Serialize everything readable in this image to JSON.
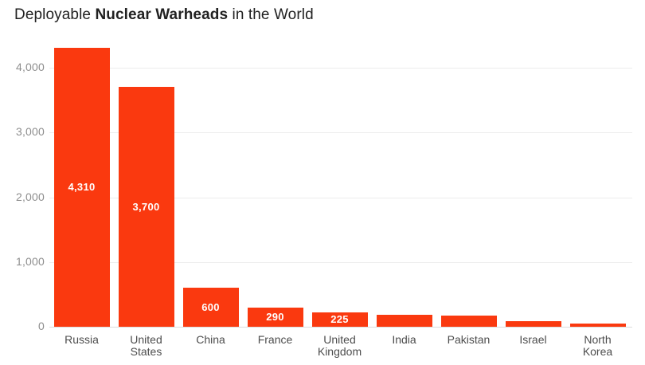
{
  "title": {
    "prefix": "Deployable ",
    "emphasis": "Nuclear Warheads",
    "suffix": " in the World"
  },
  "chart_data": {
    "type": "bar",
    "title": "Deployable Nuclear Warheads in the World",
    "categories": [
      "Russia",
      "United States",
      "China",
      "France",
      "United Kingdom",
      "India",
      "Pakistan",
      "Israel",
      "North Korea"
    ],
    "values": [
      4310,
      3700,
      600,
      290,
      225,
      180,
      170,
      90,
      50
    ],
    "bar_labels": [
      "4,310",
      "3,700",
      "600",
      "290",
      "225",
      "",
      "",
      "",
      ""
    ],
    "xlabel": "",
    "ylabel": "",
    "ylim": [
      0,
      4400
    ],
    "yticks": [
      0,
      1000,
      2000,
      3000,
      4000
    ],
    "ytick_labels": [
      "0",
      "1,000",
      "2,000",
      "3,000",
      "4,000"
    ],
    "grid": true,
    "legend": false
  },
  "colors": {
    "bar": "#fa390f",
    "bar_value_text": "#ffffff",
    "gridline": "#ededed",
    "baseline": "#dcdcdc",
    "ytick_text": "#8e8e8e",
    "xtick_text": "#4d4d4d",
    "title_text": "#212121"
  }
}
